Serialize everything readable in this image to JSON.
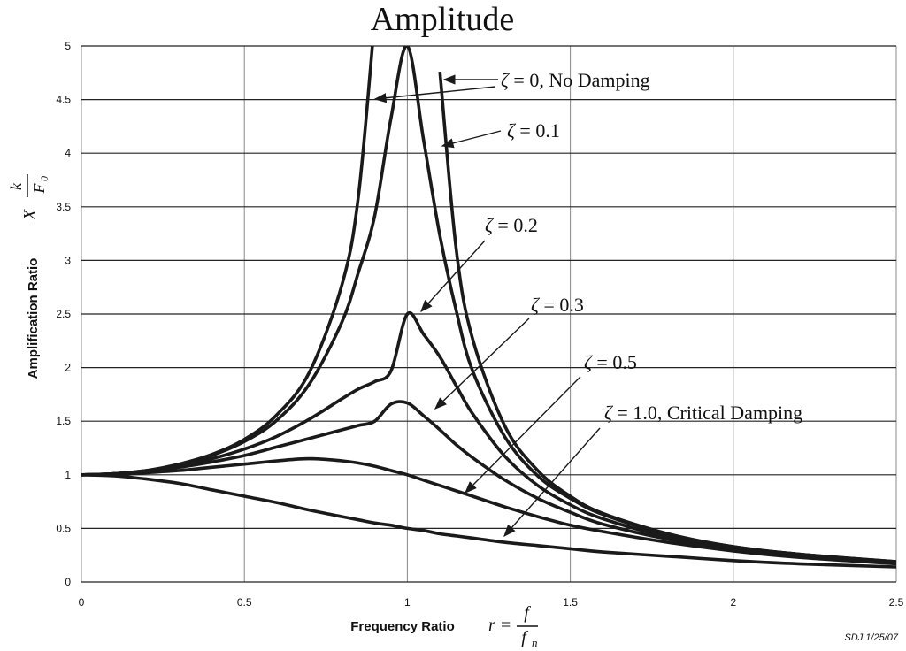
{
  "chart_data": {
    "type": "line",
    "title": "Amplitude",
    "xlabel": "Frequency Ratio",
    "xlabel_math": {
      "lhs": "r =",
      "num": "f",
      "den": "f",
      "den_sub": "n"
    },
    "ylabel": "Amplification Ratio",
    "ylabel_math": {
      "pre": "X",
      "num": "k",
      "den": "F",
      "den_sub": "0"
    },
    "xlim": [
      0,
      2.5
    ],
    "ylim": [
      0,
      5
    ],
    "grid": true,
    "x_ticks": [
      "0",
      "0.5",
      "1",
      "1.5",
      "2",
      "2.5"
    ],
    "y_ticks": [
      "0",
      "0.5",
      "1",
      "1.5",
      "2",
      "2.5",
      "3",
      "3.5",
      "4",
      "4.5",
      "5"
    ],
    "x": [
      0,
      0.1,
      0.2,
      0.3,
      0.4,
      0.5,
      0.6,
      0.7,
      0.8,
      0.85,
      0.9,
      0.95,
      1.0,
      1.05,
      1.1,
      1.15,
      1.2,
      1.3,
      1.4,
      1.5,
      1.6,
      1.8,
      2.0,
      2.2,
      2.5
    ],
    "series": [
      {
        "name": "ζ = 0,  No Damping",
        "zeta": 0,
        "values": [
          1,
          1.01,
          1.04,
          1.1,
          1.19,
          1.33,
          1.56,
          1.96,
          2.78,
          3.6,
          5.26,
          null,
          null,
          null,
          4.76,
          3.1,
          2.27,
          1.45,
          1.04,
          0.8,
          0.64,
          0.45,
          0.33,
          0.26,
          0.19
        ]
      },
      {
        "name": "ζ = 0.1",
        "zeta": 0.1,
        "values": [
          1,
          1.01,
          1.04,
          1.09,
          1.18,
          1.31,
          1.51,
          1.85,
          2.43,
          2.89,
          3.42,
          4.33,
          5.0,
          4.12,
          3.23,
          2.53,
          1.97,
          1.35,
          0.99,
          0.78,
          0.63,
          0.44,
          0.33,
          0.26,
          0.19
        ]
      },
      {
        "name": "ζ = 0.2",
        "zeta": 0.2,
        "values": [
          1,
          1.01,
          1.04,
          1.08,
          1.15,
          1.24,
          1.36,
          1.52,
          1.71,
          1.8,
          1.87,
          1.97,
          2.5,
          2.31,
          2.1,
          1.83,
          1.57,
          1.17,
          0.9,
          0.72,
          0.59,
          0.42,
          0.32,
          0.26,
          0.18
        ]
      },
      {
        "name": "ζ = 0.3",
        "zeta": 0.3,
        "values": [
          1,
          1.01,
          1.03,
          1.07,
          1.12,
          1.18,
          1.26,
          1.34,
          1.42,
          1.46,
          1.5,
          1.66,
          1.67,
          1.55,
          1.42,
          1.28,
          1.16,
          0.95,
          0.78,
          0.65,
          0.54,
          0.4,
          0.31,
          0.25,
          0.18
        ]
      },
      {
        "name": "ζ = 0.5",
        "zeta": 0.5,
        "values": [
          1,
          1.0,
          1.02,
          1.04,
          1.07,
          1.1,
          1.13,
          1.15,
          1.13,
          1.11,
          1.08,
          1.04,
          1.0,
          0.95,
          0.9,
          0.85,
          0.8,
          0.7,
          0.61,
          0.53,
          0.47,
          0.37,
          0.29,
          0.23,
          0.17
        ]
      },
      {
        "name": "ζ = 1.0, Critical Damping",
        "zeta": 1.0,
        "values": [
          1,
          0.99,
          0.96,
          0.92,
          0.86,
          0.8,
          0.74,
          0.67,
          0.61,
          0.58,
          0.55,
          0.53,
          0.5,
          0.48,
          0.45,
          0.43,
          0.41,
          0.37,
          0.34,
          0.31,
          0.28,
          0.24,
          0.2,
          0.17,
          0.14
        ]
      }
    ],
    "annotations": [
      {
        "greek": "ζ",
        "text": "= 0,  No Damping"
      },
      {
        "greek": "ζ",
        "text": "= 0.1"
      },
      {
        "greek": "ζ",
        "text": "= 0.2"
      },
      {
        "greek": "ζ",
        "text": "= 0.3"
      },
      {
        "greek": "ζ",
        "text": "= 0.5"
      },
      {
        "greek": "ζ",
        "text": "= 1.0, Critical Damping"
      }
    ],
    "credit": "SDJ 1/25/07"
  }
}
